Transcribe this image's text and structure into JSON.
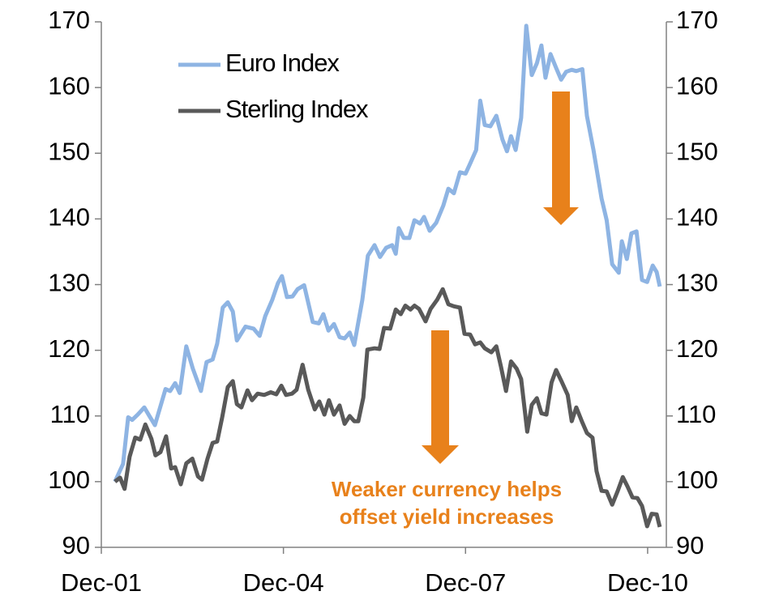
{
  "chart_data": {
    "type": "line",
    "legend": "top-left",
    "annotation": [
      "Weaker currency helps",
      "offset yield increases"
    ],
    "annotation_color": "#e8811b",
    "xlim": [
      0,
      111.7
    ],
    "xticks": [
      {
        "value": 0,
        "label": "Dec-01"
      },
      {
        "value": 36,
        "label": "Dec-04"
      },
      {
        "value": 72,
        "label": "Dec-07"
      },
      {
        "value": 108,
        "label": "Dec-10"
      }
    ],
    "ylim": [
      90,
      170
    ],
    "yticks": [
      90,
      100,
      110,
      120,
      130,
      140,
      150,
      160,
      170
    ],
    "y2lim": [
      90,
      170
    ],
    "y2ticks": [
      90,
      100,
      110,
      120,
      130,
      140,
      150,
      160,
      170
    ],
    "series": [
      {
        "name": "Euro Index",
        "color": "#8eb4e3",
        "x": [
          2.7,
          4.3,
          5.3,
          6.1,
          7.2,
          8.5,
          9.5,
          10.6,
          12.7,
          13.6,
          14.6,
          15.5,
          16.8,
          18.1,
          19.7,
          20.8,
          22.0,
          22.9,
          24.0,
          25.0,
          26.0,
          26.8,
          28.5,
          30.1,
          31.3,
          32.4,
          33.8,
          34.9,
          35.7,
          36.7,
          37.8,
          38.8,
          40.1,
          41.8,
          43.0,
          43.9,
          44.9,
          46.0,
          47.1,
          48.1,
          49.1,
          50.0,
          51.6,
          52.7,
          54.0,
          55.1,
          56.3,
          57.5,
          58.2,
          58.8,
          59.8,
          60.9,
          61.9,
          63.0,
          63.8,
          64.9,
          66.2,
          67.6,
          68.6,
          69.7,
          70.9,
          72.0,
          72.9,
          74.1,
          74.9,
          75.8,
          76.9,
          78.1,
          79.3,
          80.2,
          81.0,
          81.9,
          83.0,
          84.0,
          85.1,
          86.1,
          87.0,
          87.8,
          88.8,
          89.9,
          90.9,
          91.9,
          93.0,
          93.9,
          95.1,
          96.0,
          97.3,
          98.9,
          99.9,
          101.0,
          102.3,
          102.9,
          103.9,
          104.8,
          105.8,
          106.9,
          107.9,
          109.0,
          109.8,
          110.4
        ],
        "values": [
          100,
          102.7,
          109.8,
          109.4,
          110.2,
          111.3,
          110,
          108.6,
          114.1,
          113.8,
          115,
          113.5,
          120.6,
          117.2,
          113.8,
          118.2,
          118.6,
          121,
          126.5,
          127.3,
          125.9,
          121.5,
          123.6,
          123.3,
          122.2,
          125.2,
          127.7,
          130.2,
          131.3,
          128.1,
          128.2,
          129.3,
          129.9,
          124.3,
          124.1,
          125.5,
          123,
          124,
          122,
          121.8,
          122.7,
          120.8,
          127.7,
          134.4,
          136,
          134.2,
          135.6,
          136,
          134.7,
          138.6,
          137.1,
          137.1,
          139.8,
          139.3,
          140.3,
          138.2,
          139.4,
          142,
          144.6,
          143.9,
          147.1,
          146.9,
          148.4,
          150.5,
          158,
          154.3,
          154.1,
          155.7,
          152.1,
          150.3,
          152.6,
          150.5,
          155.4,
          169.4,
          161.9,
          163.7,
          166.4,
          161.5,
          165.1,
          163,
          161.2,
          162.4,
          162.7,
          162.5,
          162.8,
          155.7,
          150.5,
          143.1,
          139.8,
          133.1,
          131.8,
          136.6,
          133.9,
          137.8,
          138.1,
          130.7,
          130.4,
          132.9,
          131.9,
          129.7
        ]
      },
      {
        "name": "Sterling Index",
        "color": "#595959",
        "x": [
          2.7,
          3.7,
          4.6,
          5.6,
          6.7,
          7.7,
          8.7,
          9.9,
          10.7,
          11.7,
          12.8,
          13.8,
          14.6,
          15.7,
          16.8,
          18.0,
          19.1,
          19.9,
          21.0,
          22.0,
          22.9,
          23.9,
          25.0,
          26.0,
          26.8,
          27.7,
          28.9,
          29.8,
          30.9,
          32.2,
          33.5,
          34.6,
          35.6,
          36.5,
          37.7,
          38.6,
          39.8,
          40.9,
          42.2,
          43.1,
          44.1,
          45.0,
          46.0,
          47.1,
          48.1,
          49.1,
          50.0,
          50.8,
          51.8,
          52.6,
          54.0,
          55.0,
          55.9,
          57.1,
          58.2,
          59.2,
          60.1,
          61.1,
          61.9,
          62.8,
          64.1,
          65.1,
          66.4,
          67.5,
          68.6,
          69.7,
          70.9,
          71.8,
          72.9,
          73.9,
          74.9,
          75.8,
          77.1,
          78.1,
          79.0,
          80.0,
          81.0,
          82.1,
          83.0,
          84.2,
          85.1,
          86.1,
          87.0,
          88.0,
          89.0,
          89.9,
          90.9,
          92.2,
          93.0,
          93.9,
          95.1,
          96.0,
          97.1,
          97.9,
          98.9,
          99.9,
          101.0,
          102.1,
          103.1,
          104.0,
          105.0,
          106.0,
          106.9,
          107.9,
          108.8,
          109.8,
          110.4
        ],
        "values": [
          100,
          100.6,
          98.9,
          103.8,
          106.7,
          106.4,
          108.7,
          106.5,
          104,
          104.5,
          106.9,
          102,
          102.2,
          99.6,
          102.8,
          103.5,
          100.8,
          100.3,
          103.5,
          105.9,
          106.1,
          109.8,
          114.4,
          115.3,
          111.8,
          111.3,
          113.9,
          112.4,
          113.4,
          113.2,
          113.6,
          113.3,
          114.6,
          113.2,
          113.4,
          114,
          117.8,
          114,
          111,
          112.2,
          110.2,
          112.4,
          110.2,
          111.6,
          108.8,
          110,
          109.2,
          109.2,
          112.8,
          120.1,
          120.3,
          120.2,
          123.4,
          123.3,
          126.2,
          125.5,
          126.8,
          126.2,
          126.8,
          126.3,
          124.4,
          126.3,
          127.7,
          129.3,
          127,
          126.7,
          126.5,
          122.5,
          122.4,
          120.9,
          121.2,
          120.3,
          119.7,
          120.6,
          117.5,
          113.8,
          118.3,
          117.2,
          115.6,
          107.6,
          111.7,
          112.7,
          110.4,
          110.2,
          115.1,
          117,
          115.4,
          113.2,
          109.2,
          111.3,
          109,
          107.4,
          106.7,
          101.6,
          98.6,
          98.5,
          96.5,
          98.6,
          100.7,
          99.3,
          97.6,
          97.5,
          96.3,
          93.2,
          95.1,
          95,
          93.1
        ]
      }
    ]
  }
}
